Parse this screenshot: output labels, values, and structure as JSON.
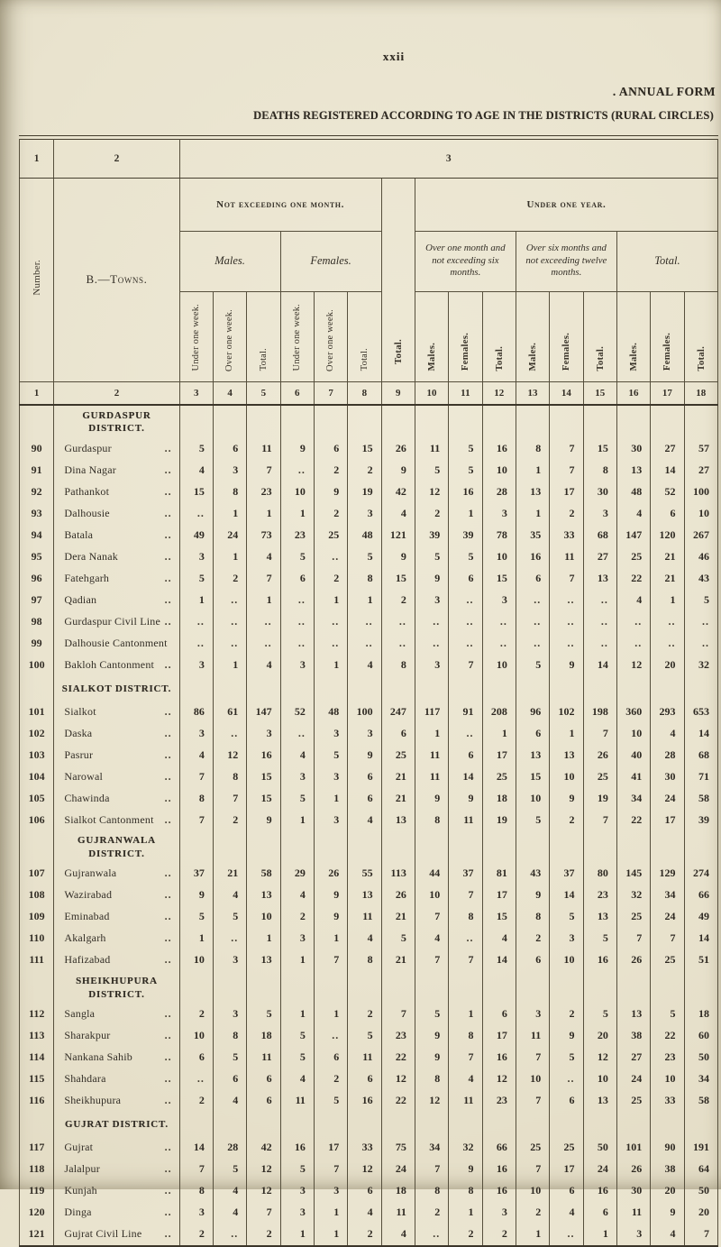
{
  "page": {
    "page_number": "xxii",
    "form_label": ". ANNUAL FORM",
    "title": "DEATHS REGISTERED ACCORDING TO AGE IN THE DISTRICTS (RURAL CIRCLES)"
  },
  "table": {
    "band": {
      "col1": "1",
      "col2": "2",
      "col3": "3"
    },
    "corner": {
      "number": "Number.",
      "towns": "B.—Towns."
    },
    "banners": {
      "not_exceeding_one_month": "Not exceeding one month.",
      "under_one_year": "Under one year."
    },
    "groups": {
      "males": "Males.",
      "females": "Females.",
      "nem_total": "Total.",
      "over_one_month": "Over one month and not exceeding six months.",
      "over_six_months": "Over six months and not exceeding twelve months.",
      "total": "Total."
    },
    "sub_headers": {
      "under_one_week": "Under one week.",
      "over_one_week": "Over one week.",
      "total": "Total.",
      "males": "Males.",
      "females": "Females."
    },
    "column_numbers": [
      "1",
      "2",
      "3",
      "4",
      "5",
      "6",
      "7",
      "8",
      "9",
      "10",
      "11",
      "12",
      "13",
      "14",
      "15",
      "16",
      "17",
      "18"
    ],
    "rows": [
      {
        "type": "district",
        "label": "GURDASPUR DISTRICT."
      },
      {
        "type": "town",
        "number": "90",
        "name": "Gurdaspur",
        "dots": "..",
        "values": [
          "5",
          "6",
          "11",
          "9",
          "6",
          "15",
          "26",
          "11",
          "5",
          "16",
          "8",
          "7",
          "15",
          "30",
          "27",
          "57"
        ]
      },
      {
        "type": "town",
        "number": "91",
        "name": "Dina Nagar",
        "dots": "..",
        "values": [
          "4",
          "3",
          "7",
          "..",
          "2",
          "2",
          "9",
          "5",
          "5",
          "10",
          "1",
          "7",
          "8",
          "13",
          "14",
          "27"
        ]
      },
      {
        "type": "town",
        "number": "92",
        "name": "Pathankot",
        "dots": "..",
        "values": [
          "15",
          "8",
          "23",
          "10",
          "9",
          "19",
          "42",
          "12",
          "16",
          "28",
          "13",
          "17",
          "30",
          "48",
          "52",
          "100"
        ]
      },
      {
        "type": "town",
        "number": "93",
        "name": "Dalhousie",
        "dots": "..",
        "values": [
          "..",
          "1",
          "1",
          "1",
          "2",
          "3",
          "4",
          "2",
          "1",
          "3",
          "1",
          "2",
          "3",
          "4",
          "6",
          "10"
        ]
      },
      {
        "type": "town",
        "number": "94",
        "name": "Batala",
        "dots": "..",
        "values": [
          "49",
          "24",
          "73",
          "23",
          "25",
          "48",
          "121",
          "39",
          "39",
          "78",
          "35",
          "33",
          "68",
          "147",
          "120",
          "267"
        ]
      },
      {
        "type": "town",
        "number": "95",
        "name": "Dera Nanak",
        "dots": "..",
        "values": [
          "3",
          "1",
          "4",
          "5",
          "..",
          "5",
          "9",
          "5",
          "5",
          "10",
          "16",
          "11",
          "27",
          "25",
          "21",
          "46"
        ]
      },
      {
        "type": "town",
        "number": "96",
        "name": "Fatehgarh",
        "dots": "..",
        "values": [
          "5",
          "2",
          "7",
          "6",
          "2",
          "8",
          "15",
          "9",
          "6",
          "15",
          "6",
          "7",
          "13",
          "22",
          "21",
          "43"
        ]
      },
      {
        "type": "town",
        "number": "97",
        "name": "Qadian",
        "dots": "..",
        "values": [
          "1",
          "..",
          "1",
          "..",
          "1",
          "1",
          "2",
          "3",
          "..",
          "3",
          "..",
          "..",
          "..",
          "4",
          "1",
          "5"
        ]
      },
      {
        "type": "town",
        "number": "98",
        "name": "Gurdaspur Civil Line",
        "dots": "..",
        "values": [
          "..",
          "..",
          "..",
          "..",
          "..",
          "..",
          "..",
          "..",
          "..",
          "..",
          "..",
          "..",
          "..",
          "..",
          "..",
          ".."
        ]
      },
      {
        "type": "town",
        "number": "99",
        "name": "Dalhousie Cantonment",
        "dots": "",
        "values": [
          "..",
          "..",
          "..",
          "..",
          "..",
          "..",
          "..",
          "..",
          "..",
          "..",
          "..",
          "..",
          "..",
          "..",
          "..",
          ".."
        ]
      },
      {
        "type": "town",
        "number": "100",
        "name": "Bakloh Cantonment",
        "dots": "..",
        "values": [
          "3",
          "1",
          "4",
          "3",
          "1",
          "4",
          "8",
          "3",
          "7",
          "10",
          "5",
          "9",
          "14",
          "12",
          "20",
          "32"
        ]
      },
      {
        "type": "district",
        "label": "SIALKOT DISTRICT."
      },
      {
        "type": "town",
        "number": "101",
        "name": "Sialkot",
        "dots": "..",
        "values": [
          "86",
          "61",
          "147",
          "52",
          "48",
          "100",
          "247",
          "117",
          "91",
          "208",
          "96",
          "102",
          "198",
          "360",
          "293",
          "653"
        ]
      },
      {
        "type": "town",
        "number": "102",
        "name": "Daska",
        "dots": "..",
        "values": [
          "3",
          "..",
          "3",
          "..",
          "3",
          "3",
          "6",
          "1",
          "..",
          "1",
          "6",
          "1",
          "7",
          "10",
          "4",
          "14"
        ]
      },
      {
        "type": "town",
        "number": "103",
        "name": "Pasrur",
        "dots": "..",
        "values": [
          "4",
          "12",
          "16",
          "4",
          "5",
          "9",
          "25",
          "11",
          "6",
          "17",
          "13",
          "13",
          "26",
          "40",
          "28",
          "68"
        ]
      },
      {
        "type": "town",
        "number": "104",
        "name": "Narowal",
        "dots": "..",
        "values": [
          "7",
          "8",
          "15",
          "3",
          "3",
          "6",
          "21",
          "11",
          "14",
          "25",
          "15",
          "10",
          "25",
          "41",
          "30",
          "71"
        ]
      },
      {
        "type": "town",
        "number": "105",
        "name": "Chawinda",
        "dots": "..",
        "values": [
          "8",
          "7",
          "15",
          "5",
          "1",
          "6",
          "21",
          "9",
          "9",
          "18",
          "10",
          "9",
          "19",
          "34",
          "24",
          "58"
        ]
      },
      {
        "type": "town",
        "number": "106",
        "name": "Sialkot Cantonment",
        "dots": "..",
        "values": [
          "7",
          "2",
          "9",
          "1",
          "3",
          "4",
          "13",
          "8",
          "11",
          "19",
          "5",
          "2",
          "7",
          "22",
          "17",
          "39"
        ]
      },
      {
        "type": "district",
        "label": "GUJRANWALA DISTRICT."
      },
      {
        "type": "town",
        "number": "107",
        "name": "Gujranwala",
        "dots": "..",
        "values": [
          "37",
          "21",
          "58",
          "29",
          "26",
          "55",
          "113",
          "44",
          "37",
          "81",
          "43",
          "37",
          "80",
          "145",
          "129",
          "274"
        ]
      },
      {
        "type": "town",
        "number": "108",
        "name": "Wazirabad",
        "dots": "..",
        "values": [
          "9",
          "4",
          "13",
          "4",
          "9",
          "13",
          "26",
          "10",
          "7",
          "17",
          "9",
          "14",
          "23",
          "32",
          "34",
          "66"
        ]
      },
      {
        "type": "town",
        "number": "109",
        "name": "Eminabad",
        "dots": "..",
        "values": [
          "5",
          "5",
          "10",
          "2",
          "9",
          "11",
          "21",
          "7",
          "8",
          "15",
          "8",
          "5",
          "13",
          "25",
          "24",
          "49"
        ]
      },
      {
        "type": "town",
        "number": "110",
        "name": "Akalgarh",
        "dots": "..",
        "values": [
          "1",
          "..",
          "1",
          "3",
          "1",
          "4",
          "5",
          "4",
          "..",
          "4",
          "2",
          "3",
          "5",
          "7",
          "7",
          "14"
        ]
      },
      {
        "type": "town",
        "number": "111",
        "name": "Hafizabad",
        "dots": "..",
        "values": [
          "10",
          "3",
          "13",
          "1",
          "7",
          "8",
          "21",
          "7",
          "7",
          "14",
          "6",
          "10",
          "16",
          "26",
          "25",
          "51"
        ]
      },
      {
        "type": "district",
        "label": "SHEIKHUPURA DISTRICT."
      },
      {
        "type": "town",
        "number": "112",
        "name": "Sangla",
        "dots": "..",
        "values": [
          "2",
          "3",
          "5",
          "1",
          "1",
          "2",
          "7",
          "5",
          "1",
          "6",
          "3",
          "2",
          "5",
          "13",
          "5",
          "18"
        ]
      },
      {
        "type": "town",
        "number": "113",
        "name": "Sharakpur",
        "dots": "..",
        "values": [
          "10",
          "8",
          "18",
          "5",
          "..",
          "5",
          "23",
          "9",
          "8",
          "17",
          "11",
          "9",
          "20",
          "38",
          "22",
          "60"
        ]
      },
      {
        "type": "town",
        "number": "114",
        "name": "Nankana Sahib",
        "dots": "..",
        "values": [
          "6",
          "5",
          "11",
          "5",
          "6",
          "11",
          "22",
          "9",
          "7",
          "16",
          "7",
          "5",
          "12",
          "27",
          "23",
          "50"
        ]
      },
      {
        "type": "town",
        "number": "115",
        "name": "Shahdara",
        "dots": "..",
        "values": [
          "..",
          "6",
          "6",
          "4",
          "2",
          "6",
          "12",
          "8",
          "4",
          "12",
          "10",
          "..",
          "10",
          "24",
          "10",
          "34"
        ]
      },
      {
        "type": "town",
        "number": "116",
        "name": "Sheikhupura",
        "dots": "..",
        "values": [
          "2",
          "4",
          "6",
          "11",
          "5",
          "16",
          "22",
          "12",
          "11",
          "23",
          "7",
          "6",
          "13",
          "25",
          "33",
          "58"
        ]
      },
      {
        "type": "district",
        "label": "GUJRAT DISTRICT."
      },
      {
        "type": "town",
        "number": "117",
        "name": "Gujrat",
        "dots": "..",
        "values": [
          "14",
          "28",
          "42",
          "16",
          "17",
          "33",
          "75",
          "34",
          "32",
          "66",
          "25",
          "25",
          "50",
          "101",
          "90",
          "191"
        ]
      },
      {
        "type": "town",
        "number": "118",
        "name": "Jalalpur",
        "dots": "..",
        "values": [
          "7",
          "5",
          "12",
          "5",
          "7",
          "12",
          "24",
          "7",
          "9",
          "16",
          "7",
          "17",
          "24",
          "26",
          "38",
          "64"
        ]
      },
      {
        "type": "town",
        "number": "119",
        "name": "Kunjah",
        "dots": "..",
        "values": [
          "8",
          "4",
          "12",
          "3",
          "3",
          "6",
          "18",
          "8",
          "8",
          "16",
          "10",
          "6",
          "16",
          "30",
          "20",
          "50"
        ]
      },
      {
        "type": "town",
        "number": "120",
        "name": "Dinga",
        "dots": "..",
        "values": [
          "3",
          "4",
          "7",
          "3",
          "1",
          "4",
          "11",
          "2",
          "1",
          "3",
          "2",
          "4",
          "6",
          "11",
          "9",
          "20"
        ]
      },
      {
        "type": "town",
        "number": "121",
        "name": "Gujrat Civil Line",
        "dots": "..",
        "values": [
          "2",
          "..",
          "2",
          "1",
          "1",
          "2",
          "4",
          "..",
          "2",
          "2",
          "1",
          "..",
          "1",
          "3",
          "4",
          "7"
        ]
      }
    ]
  }
}
